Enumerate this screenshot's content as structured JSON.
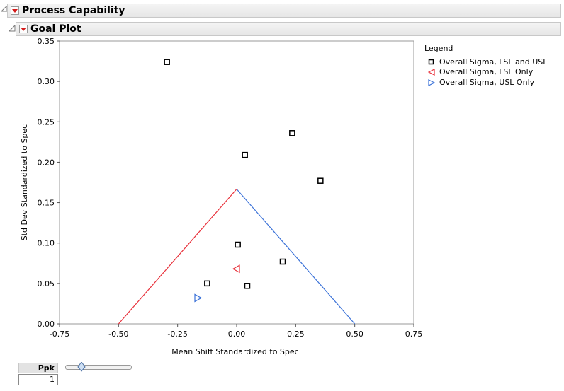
{
  "outline": {
    "process_capability_title": "Process Capability",
    "goal_plot_title": "Goal Plot"
  },
  "legend": {
    "title": "Legend",
    "items": [
      {
        "label": "Overall Sigma, LSL and USL",
        "marker": "square",
        "color": "#000000"
      },
      {
        "label": "Overall Sigma, LSL Only",
        "marker": "triangle-left",
        "color": "#e8303a"
      },
      {
        "label": "Overall Sigma, USL Only",
        "marker": "triangle-right",
        "color": "#3b72d8"
      }
    ]
  },
  "ppk": {
    "label": "Ppk",
    "value": "1",
    "slider_fraction": 0.25
  },
  "chart_data": {
    "type": "scatter",
    "xlabel": "Mean Shift Standardized to Spec",
    "ylabel": "Std Dev Standardized to Spec",
    "xlim": [
      -0.75,
      0.75
    ],
    "ylim": [
      0,
      0.35
    ],
    "x_ticks": [
      "-0.75",
      "-0.50",
      "-0.25",
      "0.00",
      "0.25",
      "0.50",
      "0.75"
    ],
    "y_ticks": [
      "0.00",
      "0.05",
      "0.10",
      "0.15",
      "0.20",
      "0.25",
      "0.30",
      "0.35"
    ],
    "grid": false,
    "legend_position": "right",
    "series": [
      {
        "name": "Overall Sigma, LSL and USL",
        "marker": "square",
        "color": "#000000",
        "points": [
          {
            "x": -0.295,
            "y": 0.324
          },
          {
            "x": 0.235,
            "y": 0.236
          },
          {
            "x": 0.035,
            "y": 0.209
          },
          {
            "x": 0.355,
            "y": 0.177
          },
          {
            "x": 0.005,
            "y": 0.098
          },
          {
            "x": 0.195,
            "y": 0.077
          },
          {
            "x": -0.125,
            "y": 0.05
          },
          {
            "x": 0.045,
            "y": 0.047
          }
        ]
      },
      {
        "name": "Overall Sigma, LSL Only",
        "marker": "triangle-left",
        "color": "#e8303a",
        "points": [
          {
            "x": 0.0,
            "y": 0.068
          }
        ]
      },
      {
        "name": "Overall Sigma, USL Only",
        "marker": "triangle-right",
        "color": "#3b72d8",
        "points": [
          {
            "x": -0.165,
            "y": 0.032
          }
        ]
      }
    ],
    "ppk_lines": [
      {
        "color": "#e8303a",
        "from": {
          "x": -0.5,
          "y": 0.0
        },
        "to": {
          "x": 0.0,
          "y": 0.1667
        }
      },
      {
        "color": "#3b72d8",
        "from": {
          "x": 0.0,
          "y": 0.1667
        },
        "to": {
          "x": 0.5,
          "y": 0.0
        }
      }
    ]
  }
}
